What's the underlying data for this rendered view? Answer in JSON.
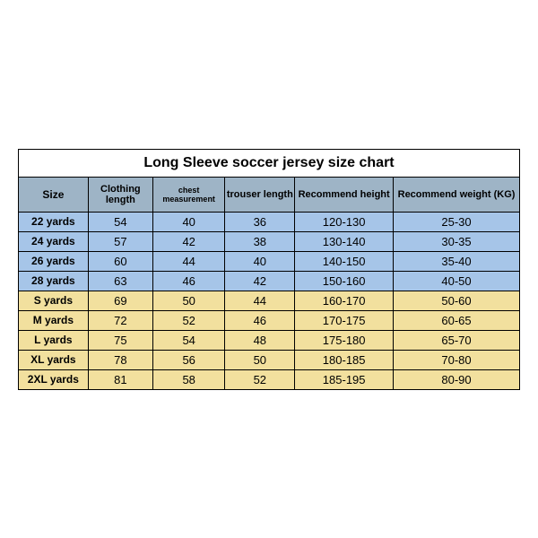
{
  "title": "Long Sleeve soccer jersey size chart",
  "colors": {
    "header_bg": "#9eb4c6",
    "blue_bg": "#a6c5e8",
    "yellow_bg": "#f2e09e",
    "border": "#000000",
    "text": "#000000"
  },
  "columns": [
    {
      "key": "size",
      "label": "Size"
    },
    {
      "key": "cloth",
      "label": "Clothing length"
    },
    {
      "key": "chest",
      "label": "chest measurement"
    },
    {
      "key": "trouser",
      "label": "trouser length"
    },
    {
      "key": "height",
      "label": "Recommend height"
    },
    {
      "key": "weight",
      "label": "Recommend weight (KG)"
    }
  ],
  "rows": [
    {
      "group": "blue",
      "size": "22 yards",
      "cloth": "54",
      "chest": "40",
      "trouser": "36",
      "height": "120-130",
      "weight": "25-30"
    },
    {
      "group": "blue",
      "size": "24 yards",
      "cloth": "57",
      "chest": "42",
      "trouser": "38",
      "height": "130-140",
      "weight": "30-35"
    },
    {
      "group": "blue",
      "size": "26 yards",
      "cloth": "60",
      "chest": "44",
      "trouser": "40",
      "height": "140-150",
      "weight": "35-40"
    },
    {
      "group": "blue",
      "size": "28 yards",
      "cloth": "63",
      "chest": "46",
      "trouser": "42",
      "height": "150-160",
      "weight": "40-50"
    },
    {
      "group": "yellow",
      "size": "S yards",
      "cloth": "69",
      "chest": "50",
      "trouser": "44",
      "height": "160-170",
      "weight": "50-60"
    },
    {
      "group": "yellow",
      "size": "M yards",
      "cloth": "72",
      "chest": "52",
      "trouser": "46",
      "height": "170-175",
      "weight": "60-65"
    },
    {
      "group": "yellow",
      "size": "L yards",
      "cloth": "75",
      "chest": "54",
      "trouser": "48",
      "height": "175-180",
      "weight": "65-70"
    },
    {
      "group": "yellow",
      "size": "XL yards",
      "cloth": "78",
      "chest": "56",
      "trouser": "50",
      "height": "180-185",
      "weight": "70-80"
    },
    {
      "group": "yellow",
      "size": "2XL yards",
      "cloth": "81",
      "chest": "58",
      "trouser": "52",
      "height": "185-195",
      "weight": "80-90"
    }
  ]
}
